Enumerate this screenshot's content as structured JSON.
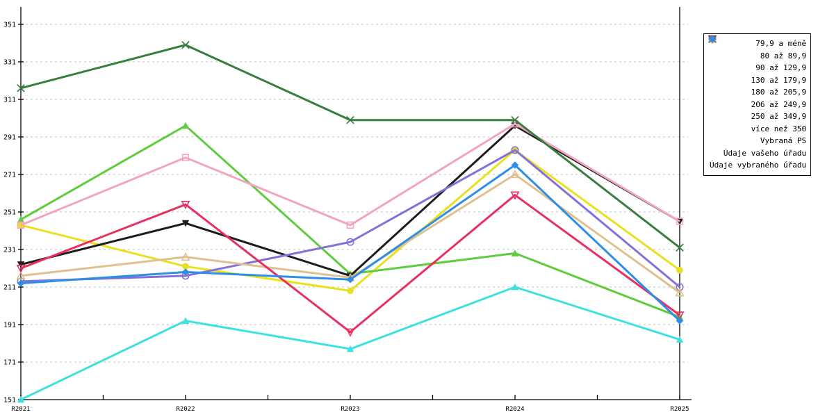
{
  "chart_data": {
    "type": "line",
    "x_categories": [
      "R2021",
      "R2022",
      "R2023",
      "R2024",
      "R2025"
    ],
    "xlabel": "",
    "ylabel": "",
    "title": "",
    "ylim": [
      151,
      351
    ],
    "y_ticks": [
      151,
      171,
      191,
      211,
      231,
      251,
      271,
      291,
      311,
      331,
      351
    ],
    "grid": "horizontal-dashed",
    "legend_position": "right-outside",
    "style": {
      "axis_color": "#000000",
      "grid_color": "#c0c0c0",
      "background": "#ffffff",
      "line_width": 3
    },
    "series": [
      {
        "name": "79,9 a méně",
        "color": "#990099",
        "marker": "diamond-filled",
        "values": null
      },
      {
        "name": "80 až 89,9",
        "color": "#e8e020",
        "marker": "circle-filled",
        "values": [
          244,
          222,
          209,
          284,
          220
        ]
      },
      {
        "name": "90 až 129,9",
        "color": "#40e0e0",
        "marker": "triangle-up-filled",
        "values": [
          151,
          193,
          178,
          211,
          183
        ]
      },
      {
        "name": "130 až 179,9",
        "color": "#5ecc3e",
        "marker": "triangle-up-filled",
        "values": [
          247,
          297,
          218,
          229,
          195
        ]
      },
      {
        "name": "180 až 205,9",
        "color": "#1c1c1c",
        "marker": "triangle-down-filled",
        "values": [
          223,
          245,
          217,
          297,
          246
        ]
      },
      {
        "name": "206 až 249,9",
        "color": "#f2a6be",
        "marker": "square-open",
        "values": [
          244,
          280,
          244,
          298,
          246
        ]
      },
      {
        "name": "250 až 349,9",
        "color": "#8570d8",
        "marker": "circle-open",
        "values": [
          214,
          217,
          235,
          284,
          211
        ]
      },
      {
        "name": "více než 350",
        "color": "#dfc090",
        "marker": "triangle-up-open",
        "values": [
          217,
          227,
          216,
          271,
          208
        ]
      },
      {
        "name": "Vybraná PS",
        "color": "#e83060",
        "marker": "triangle-down-open",
        "values": [
          221,
          255,
          187,
          260,
          196
        ]
      },
      {
        "name": "Údaje vašeho úřadu",
        "color": "#367d3e",
        "marker": "x-cross",
        "values": [
          317,
          340,
          300,
          300,
          232
        ]
      },
      {
        "name": "Údaje vybraného úřadu",
        "color": "#2e8ee6",
        "marker": "diamond-filled",
        "values": [
          213,
          219,
          215,
          276,
          193
        ]
      }
    ]
  }
}
